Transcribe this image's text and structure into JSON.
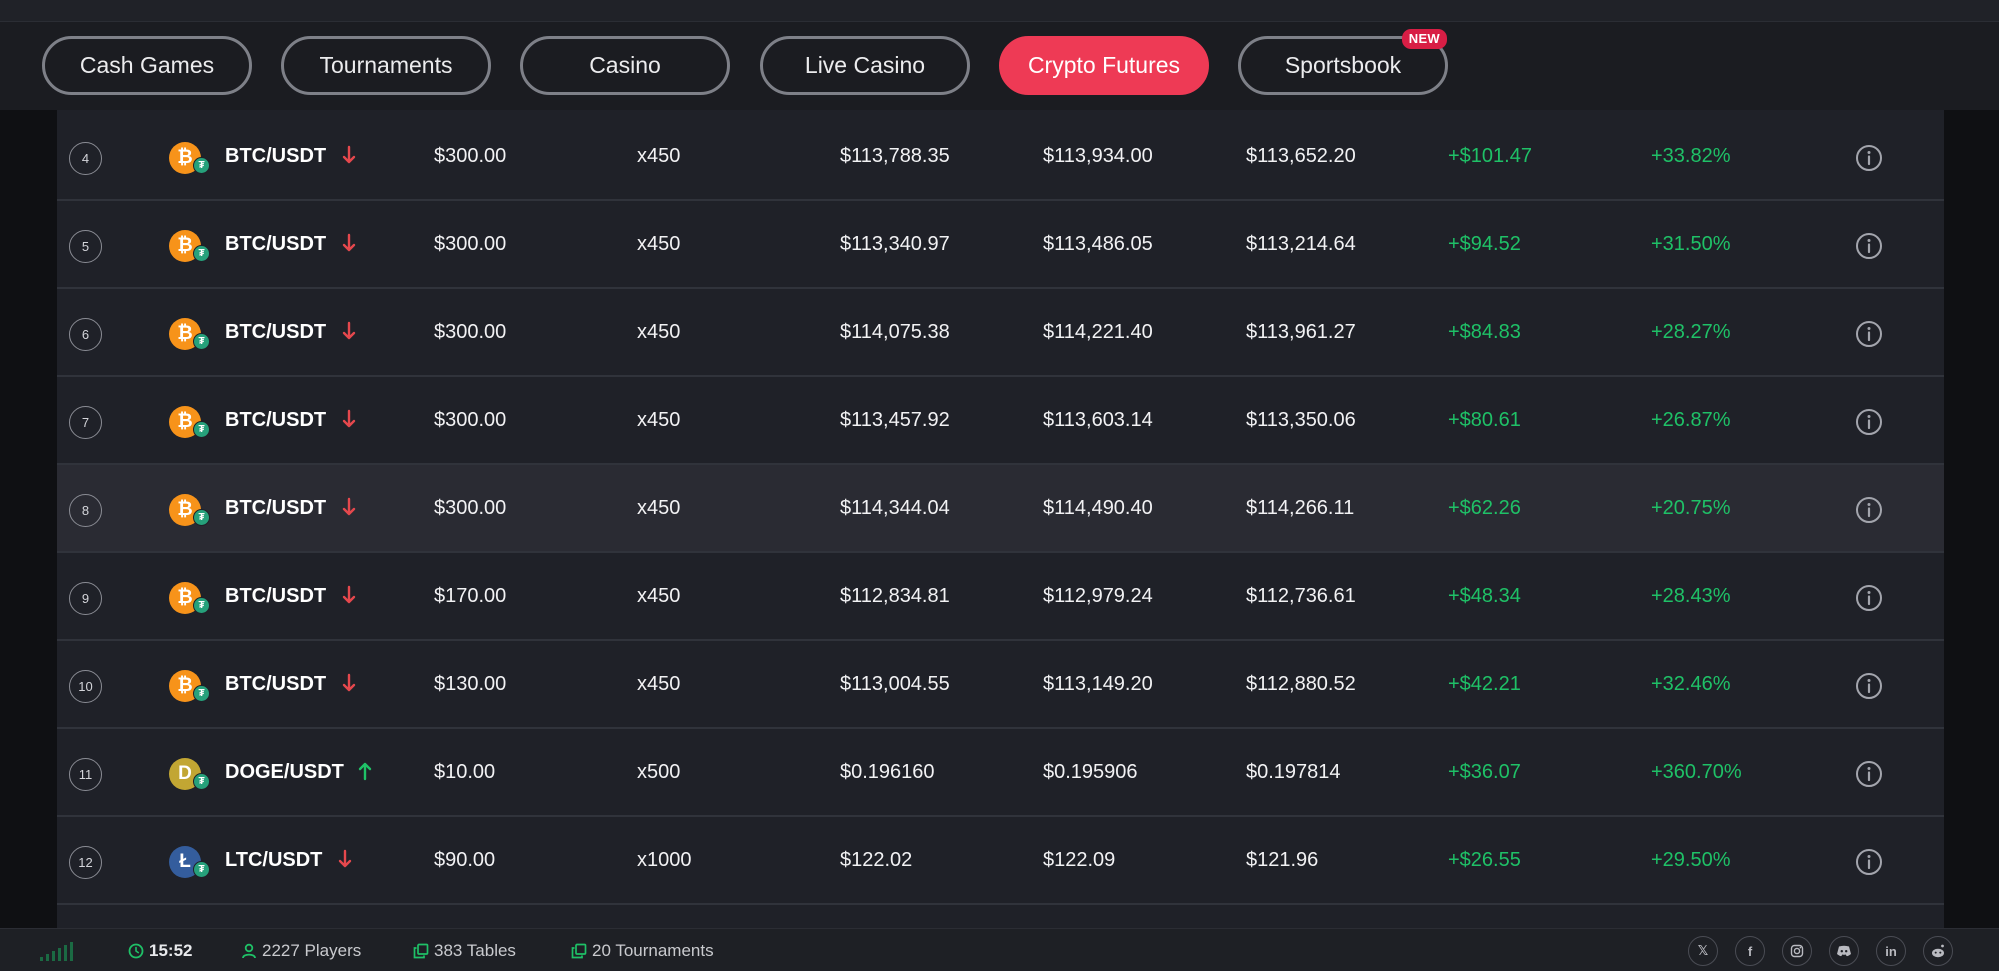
{
  "nav": {
    "tabs": [
      {
        "label": "Cash Games"
      },
      {
        "label": "Tournaments"
      },
      {
        "label": "Casino"
      },
      {
        "label": "Live Casino"
      },
      {
        "label": "Crypto Futures",
        "active": true
      },
      {
        "label": "Sportsbook",
        "badge": "NEW"
      }
    ]
  },
  "rows": [
    {
      "rank": "4",
      "coin": "btc",
      "coin_glyph": "₿",
      "pair": "BTC/USDT",
      "direction": "down",
      "wager": "$300.00",
      "multiplier": "x450",
      "entry": "$113,788.35",
      "exit": "$113,934.00",
      "bust": "$113,652.20",
      "pnl": "+$101.47",
      "roi": "+33.82%"
    },
    {
      "rank": "5",
      "coin": "btc",
      "coin_glyph": "₿",
      "pair": "BTC/USDT",
      "direction": "down",
      "wager": "$300.00",
      "multiplier": "x450",
      "entry": "$113,340.97",
      "exit": "$113,486.05",
      "bust": "$113,214.64",
      "pnl": "+$94.52",
      "roi": "+31.50%"
    },
    {
      "rank": "6",
      "coin": "btc",
      "coin_glyph": "₿",
      "pair": "BTC/USDT",
      "direction": "down",
      "wager": "$300.00",
      "multiplier": "x450",
      "entry": "$114,075.38",
      "exit": "$114,221.40",
      "bust": "$113,961.27",
      "pnl": "+$84.83",
      "roi": "+28.27%"
    },
    {
      "rank": "7",
      "coin": "btc",
      "coin_glyph": "₿",
      "pair": "BTC/USDT",
      "direction": "down",
      "wager": "$300.00",
      "multiplier": "x450",
      "entry": "$113,457.92",
      "exit": "$113,603.14",
      "bust": "$113,350.06",
      "pnl": "+$80.61",
      "roi": "+26.87%"
    },
    {
      "rank": "8",
      "coin": "btc",
      "coin_glyph": "₿",
      "pair": "BTC/USDT",
      "direction": "down",
      "wager": "$300.00",
      "multiplier": "x450",
      "entry": "$114,344.04",
      "exit": "$114,490.40",
      "bust": "$114,266.11",
      "pnl": "+$62.26",
      "roi": "+20.75%",
      "highlight": true
    },
    {
      "rank": "9",
      "coin": "btc",
      "coin_glyph": "₿",
      "pair": "BTC/USDT",
      "direction": "down",
      "wager": "$170.00",
      "multiplier": "x450",
      "entry": "$112,834.81",
      "exit": "$112,979.24",
      "bust": "$112,736.61",
      "pnl": "+$48.34",
      "roi": "+28.43%"
    },
    {
      "rank": "10",
      "coin": "btc",
      "coin_glyph": "₿",
      "pair": "BTC/USDT",
      "direction": "down",
      "wager": "$130.00",
      "multiplier": "x450",
      "entry": "$113,004.55",
      "exit": "$113,149.20",
      "bust": "$112,880.52",
      "pnl": "+$42.21",
      "roi": "+32.46%"
    },
    {
      "rank": "11",
      "coin": "doge",
      "coin_glyph": "D",
      "pair": "DOGE/USDT",
      "direction": "up",
      "wager": "$10.00",
      "multiplier": "x500",
      "entry": "$0.196160",
      "exit": "$0.195906",
      "bust": "$0.197814",
      "pnl": "+$36.07",
      "roi": "+360.70%"
    },
    {
      "rank": "12",
      "coin": "ltc",
      "coin_glyph": "Ł",
      "pair": "LTC/USDT",
      "direction": "down",
      "wager": "$90.00",
      "multiplier": "x1000",
      "entry": "$122.02",
      "exit": "$122.09",
      "bust": "$121.96",
      "pnl": "+$26.55",
      "roi": "+29.50%"
    }
  ],
  "footer": {
    "time": "15:52",
    "players": "2227 Players",
    "tables": "383 Tables",
    "tournaments": "20 Tournaments",
    "socials": [
      "x-icon",
      "facebook-icon",
      "instagram-icon",
      "discord-icon",
      "linkedin-icon",
      "reddit-icon"
    ]
  },
  "colors": {
    "accent": "#ee3a55",
    "profit": "#1fc167",
    "down": "#e5484d",
    "up": "#1fc167"
  }
}
